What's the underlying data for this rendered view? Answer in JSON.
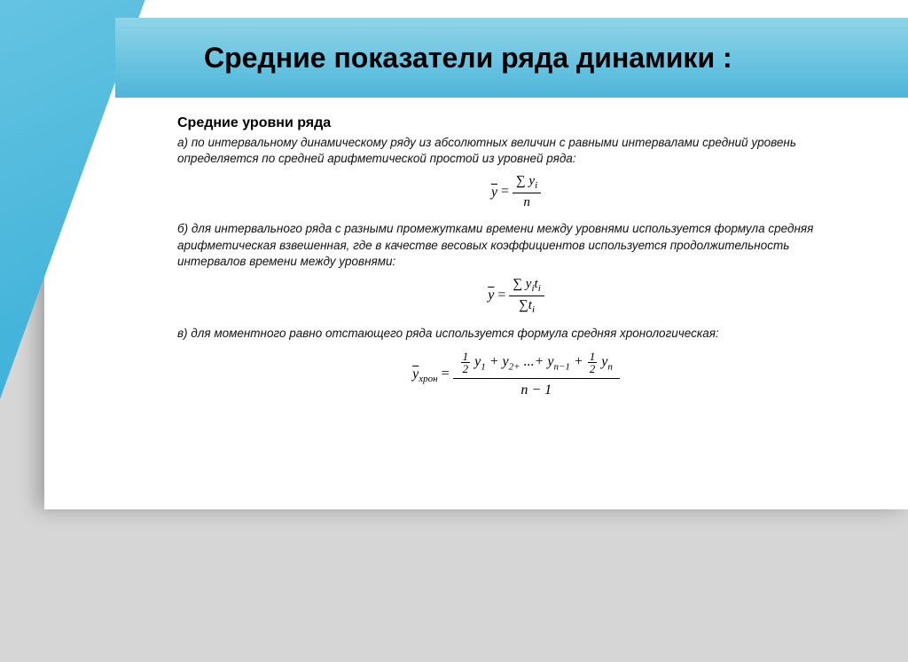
{
  "colors": {
    "page_bg": "#d6d6d6",
    "slide_bg": "#ffffff",
    "band_gradient_top": "#8fd4e8",
    "band_gradient_bottom": "#4db6d9",
    "accent_line": "#108fbf",
    "text": "#000000"
  },
  "title": "Средние показатели ряда динамики :",
  "subtitle": "Средние уровни ряда",
  "paragraphs": {
    "a": "а) по интервальному динамическому ряду из абсолютных величин с равными интервалами средний уровень определяется по средней арифметической простой из уровней ряда:",
    "b": "б) для интервального ряда с разными промежутками времени между уровнями используется формула средняя арифметическая взвешенная, где в качестве весовых коэффициентов используется продолжительность интервалов времени между уровнями:",
    "c": "в) для моментного равно отстающего ряда используется формула средняя хронологическая:"
  },
  "formulas": {
    "f1": {
      "lhs_over": "y",
      "eq": "=",
      "num": "∑ y",
      "num_sub": "i",
      "den": "n"
    },
    "f2": {
      "lhs_over": "y",
      "eq": "=",
      "num1": "∑ y",
      "num1_sub": "i",
      "num2": "t",
      "num2_sub": "i",
      "den1": "∑t",
      "den1_sub": "i"
    },
    "f3": {
      "lhs_over": "y",
      "lhs_sub": "хрон",
      "eq": "=",
      "half1_n": "1",
      "half1_d": "2",
      "term1": "y",
      "term1_sub": "1",
      "plus1": "+ ",
      "term2": "y",
      "term2_sub": "2+",
      "dots": "...+",
      "term3": "y",
      "term3_sub": "n−1",
      "plus2": "+",
      "half2_n": "1",
      "half2_d": "2",
      "term4": "y",
      "term4_sub": "n",
      "den": "n − 1"
    }
  }
}
